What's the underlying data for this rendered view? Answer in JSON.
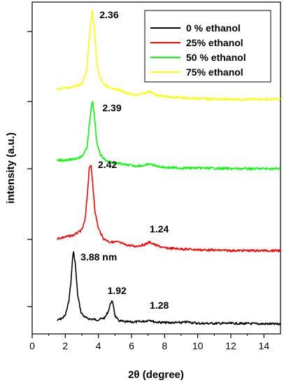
{
  "chart_data": {
    "type": "line",
    "xlabel": "2θ (degree)",
    "ylabel": "intensity (a.u.)",
    "xlim": [
      0,
      15
    ],
    "x_ticks": [
      0,
      2,
      4,
      6,
      8,
      10,
      12,
      14
    ],
    "y_ticks_labeled": false,
    "grid": false,
    "legend_position": "top-right",
    "series": [
      {
        "name": "0 % ethanol",
        "color": "#000000",
        "points": [
          [
            1.5,
            0.05
          ],
          [
            1.8,
            0.08
          ],
          [
            2.0,
            0.12
          ],
          [
            2.2,
            0.3
          ],
          [
            2.35,
            0.6
          ],
          [
            2.45,
            0.95
          ],
          [
            2.5,
            1.0
          ],
          [
            2.6,
            0.85
          ],
          [
            2.75,
            0.4
          ],
          [
            2.95,
            0.16
          ],
          [
            3.2,
            0.09
          ],
          [
            3.5,
            0.07
          ],
          [
            4.0,
            0.06
          ],
          [
            4.4,
            0.09
          ],
          [
            4.6,
            0.18
          ],
          [
            4.75,
            0.3
          ],
          [
            4.8,
            0.32
          ],
          [
            4.9,
            0.27
          ],
          [
            5.0,
            0.12
          ],
          [
            5.2,
            0.05
          ],
          [
            5.6,
            0.03
          ],
          [
            6.2,
            0.03
          ],
          [
            6.8,
            0.04
          ],
          [
            7.1,
            0.06
          ],
          [
            7.4,
            0.03
          ],
          [
            8.0,
            0.02
          ],
          [
            9.0,
            0.02
          ],
          [
            9.4,
            0.03
          ],
          [
            10.0,
            0.01
          ],
          [
            12.0,
            0.01
          ],
          [
            15.0,
            0.0
          ]
        ]
      },
      {
        "name": "25% ethanol",
        "color": "#ff0000",
        "points": [
          [
            1.5,
            0.14
          ],
          [
            2.0,
            0.16
          ],
          [
            2.5,
            0.18
          ],
          [
            3.0,
            0.24
          ],
          [
            3.2,
            0.36
          ],
          [
            3.35,
            0.7
          ],
          [
            3.45,
            0.98
          ],
          [
            3.55,
            1.0
          ],
          [
            3.65,
            0.8
          ],
          [
            3.8,
            0.45
          ],
          [
            4.0,
            0.26
          ],
          [
            4.3,
            0.14
          ],
          [
            4.7,
            0.1
          ],
          [
            5.2,
            0.1
          ],
          [
            5.6,
            0.07
          ],
          [
            6.2,
            0.05
          ],
          [
            6.8,
            0.07
          ],
          [
            7.1,
            0.1
          ],
          [
            7.5,
            0.06
          ],
          [
            8.0,
            0.03
          ],
          [
            9.0,
            0.02
          ],
          [
            10.0,
            0.01
          ],
          [
            12.0,
            0.0
          ],
          [
            15.0,
            0.0
          ]
        ]
      },
      {
        "name": "50 % ethanol",
        "color": "#00ff00",
        "points": [
          [
            1.5,
            0.12
          ],
          [
            2.0,
            0.13
          ],
          [
            2.5,
            0.14
          ],
          [
            3.0,
            0.18
          ],
          [
            3.3,
            0.3
          ],
          [
            3.5,
            0.75
          ],
          [
            3.6,
            0.97
          ],
          [
            3.65,
            1.0
          ],
          [
            3.75,
            0.8
          ],
          [
            3.9,
            0.4
          ],
          [
            4.1,
            0.22
          ],
          [
            4.4,
            0.13
          ],
          [
            4.8,
            0.09
          ],
          [
            5.2,
            0.08
          ],
          [
            5.6,
            0.06
          ],
          [
            6.2,
            0.04
          ],
          [
            6.8,
            0.05
          ],
          [
            7.1,
            0.07
          ],
          [
            7.5,
            0.04
          ],
          [
            8.0,
            0.02
          ],
          [
            9.0,
            0.01
          ],
          [
            10.0,
            0.01
          ],
          [
            12.0,
            0.0
          ],
          [
            15.0,
            0.0
          ]
        ]
      },
      {
        "name": "75% ethanol",
        "color": "#ffff00",
        "points": [
          [
            1.5,
            0.12
          ],
          [
            2.0,
            0.13
          ],
          [
            2.5,
            0.14
          ],
          [
            3.0,
            0.18
          ],
          [
            3.3,
            0.32
          ],
          [
            3.5,
            0.8
          ],
          [
            3.6,
            0.98
          ],
          [
            3.65,
            1.0
          ],
          [
            3.75,
            0.82
          ],
          [
            3.9,
            0.42
          ],
          [
            4.1,
            0.24
          ],
          [
            4.4,
            0.16
          ],
          [
            4.8,
            0.12
          ],
          [
            5.2,
            0.11
          ],
          [
            5.6,
            0.08
          ],
          [
            6.2,
            0.05
          ],
          [
            6.8,
            0.07
          ],
          [
            7.1,
            0.09
          ],
          [
            7.5,
            0.05
          ],
          [
            8.0,
            0.03
          ],
          [
            9.0,
            0.02
          ],
          [
            10.0,
            0.01
          ],
          [
            12.0,
            0.0
          ],
          [
            15.0,
            0.0
          ]
        ]
      }
    ],
    "annotations": [
      {
        "text": "3.88 nm",
        "series": "0 % ethanol",
        "x": 2.5
      },
      {
        "text": "1.92",
        "series": "0 % ethanol",
        "x": 4.8
      },
      {
        "text": "1.28",
        "series": "0 % ethanol",
        "x": 7.1
      },
      {
        "text": "2.42",
        "series": "25% ethanol",
        "x": 3.55
      },
      {
        "text": "1.24",
        "series": "25% ethanol",
        "x": 7.1
      },
      {
        "text": "2.39",
        "series": "50 % ethanol",
        "x": 3.65
      },
      {
        "text": "2.36",
        "series": "75% ethanol",
        "x": 3.65
      }
    ]
  }
}
